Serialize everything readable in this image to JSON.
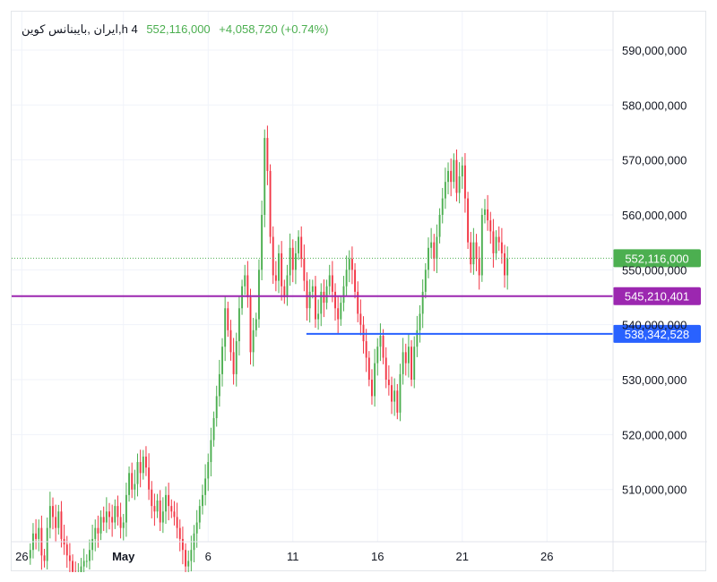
{
  "legend": {
    "symbol": "ایران ,بایبنانس کوین,h 4",
    "price": "552,116,000",
    "change": "+4,058,720 (+0.74%)"
  },
  "colors": {
    "up": "#4caf50",
    "down": "#f23645",
    "grid": "#f0f3fa",
    "axis_text": "#131722",
    "current_label": "#4caf50",
    "purple_line": "#9c27b0",
    "blue_line": "#2962ff"
  },
  "chart_data": {
    "type": "candlestick",
    "y_ticks": [
      "510,000,000",
      "520,000,000",
      "530,000,000",
      "540,000,000",
      "550,000,000",
      "560,000,000",
      "570,000,000",
      "580,000,000",
      "590,000,000"
    ],
    "y_tick_values": [
      510000000,
      520000000,
      530000000,
      540000000,
      550000000,
      560000000,
      570000000,
      580000000,
      590000000
    ],
    "ylim": [
      500500000,
      597000000
    ],
    "x_ticks": [
      {
        "label": "26",
        "day": -5
      },
      {
        "label": "May",
        "day": 1
      },
      {
        "label": "6",
        "day": 6
      },
      {
        "label": "11",
        "day": 11
      },
      {
        "label": "16",
        "day": 16
      },
      {
        "label": "21",
        "day": 21
      },
      {
        "label": "26",
        "day": 26
      }
    ],
    "xlim_days": [
      -5.6,
      29.9
    ],
    "candles_per_day": 6,
    "first_candle_day": -4.5,
    "closes": [
      499,
      502,
      501,
      503,
      498,
      497,
      503,
      507,
      505,
      503,
      506,
      501,
      500,
      498,
      497,
      495,
      493,
      494,
      496,
      497,
      497,
      499,
      501,
      503,
      502,
      505,
      504,
      506,
      505,
      504,
      507,
      505,
      503,
      504,
      509,
      513,
      510,
      511,
      515,
      513,
      516,
      514,
      510,
      507,
      506,
      508,
      504,
      506,
      509,
      507,
      506,
      505,
      503,
      501,
      499,
      496,
      497,
      499,
      502,
      504,
      507,
      509,
      512,
      515,
      519,
      523,
      527,
      531,
      536,
      543,
      539,
      535,
      531,
      537,
      543,
      547,
      549,
      545,
      535,
      539,
      541,
      550,
      560,
      574,
      568,
      556,
      549,
      548,
      553,
      547,
      545,
      549,
      554,
      550,
      553,
      556,
      552,
      548,
      543,
      546,
      547,
      541,
      542,
      546,
      544,
      547,
      549,
      546,
      543,
      541,
      544,
      547,
      550,
      552,
      550,
      546,
      542,
      540,
      537,
      534,
      530,
      527,
      533,
      536,
      538,
      534,
      530,
      529,
      526,
      528,
      524,
      531,
      535,
      533,
      536,
      530,
      536,
      539,
      542,
      546,
      550,
      554,
      555,
      552,
      556,
      560,
      563,
      566,
      568,
      566,
      570,
      564,
      567,
      569,
      563,
      555,
      551,
      555,
      552,
      549,
      560,
      561,
      559,
      557,
      553,
      556,
      555,
      553,
      549,
      552
    ]
  },
  "price_lines": [
    {
      "name": "current",
      "value": 552116000,
      "label": "552,116,000"
    },
    {
      "name": "purple",
      "value": 545210401,
      "label": "545,210,401"
    },
    {
      "name": "blue",
      "value": 538342528,
      "label": "538,342,528"
    }
  ]
}
